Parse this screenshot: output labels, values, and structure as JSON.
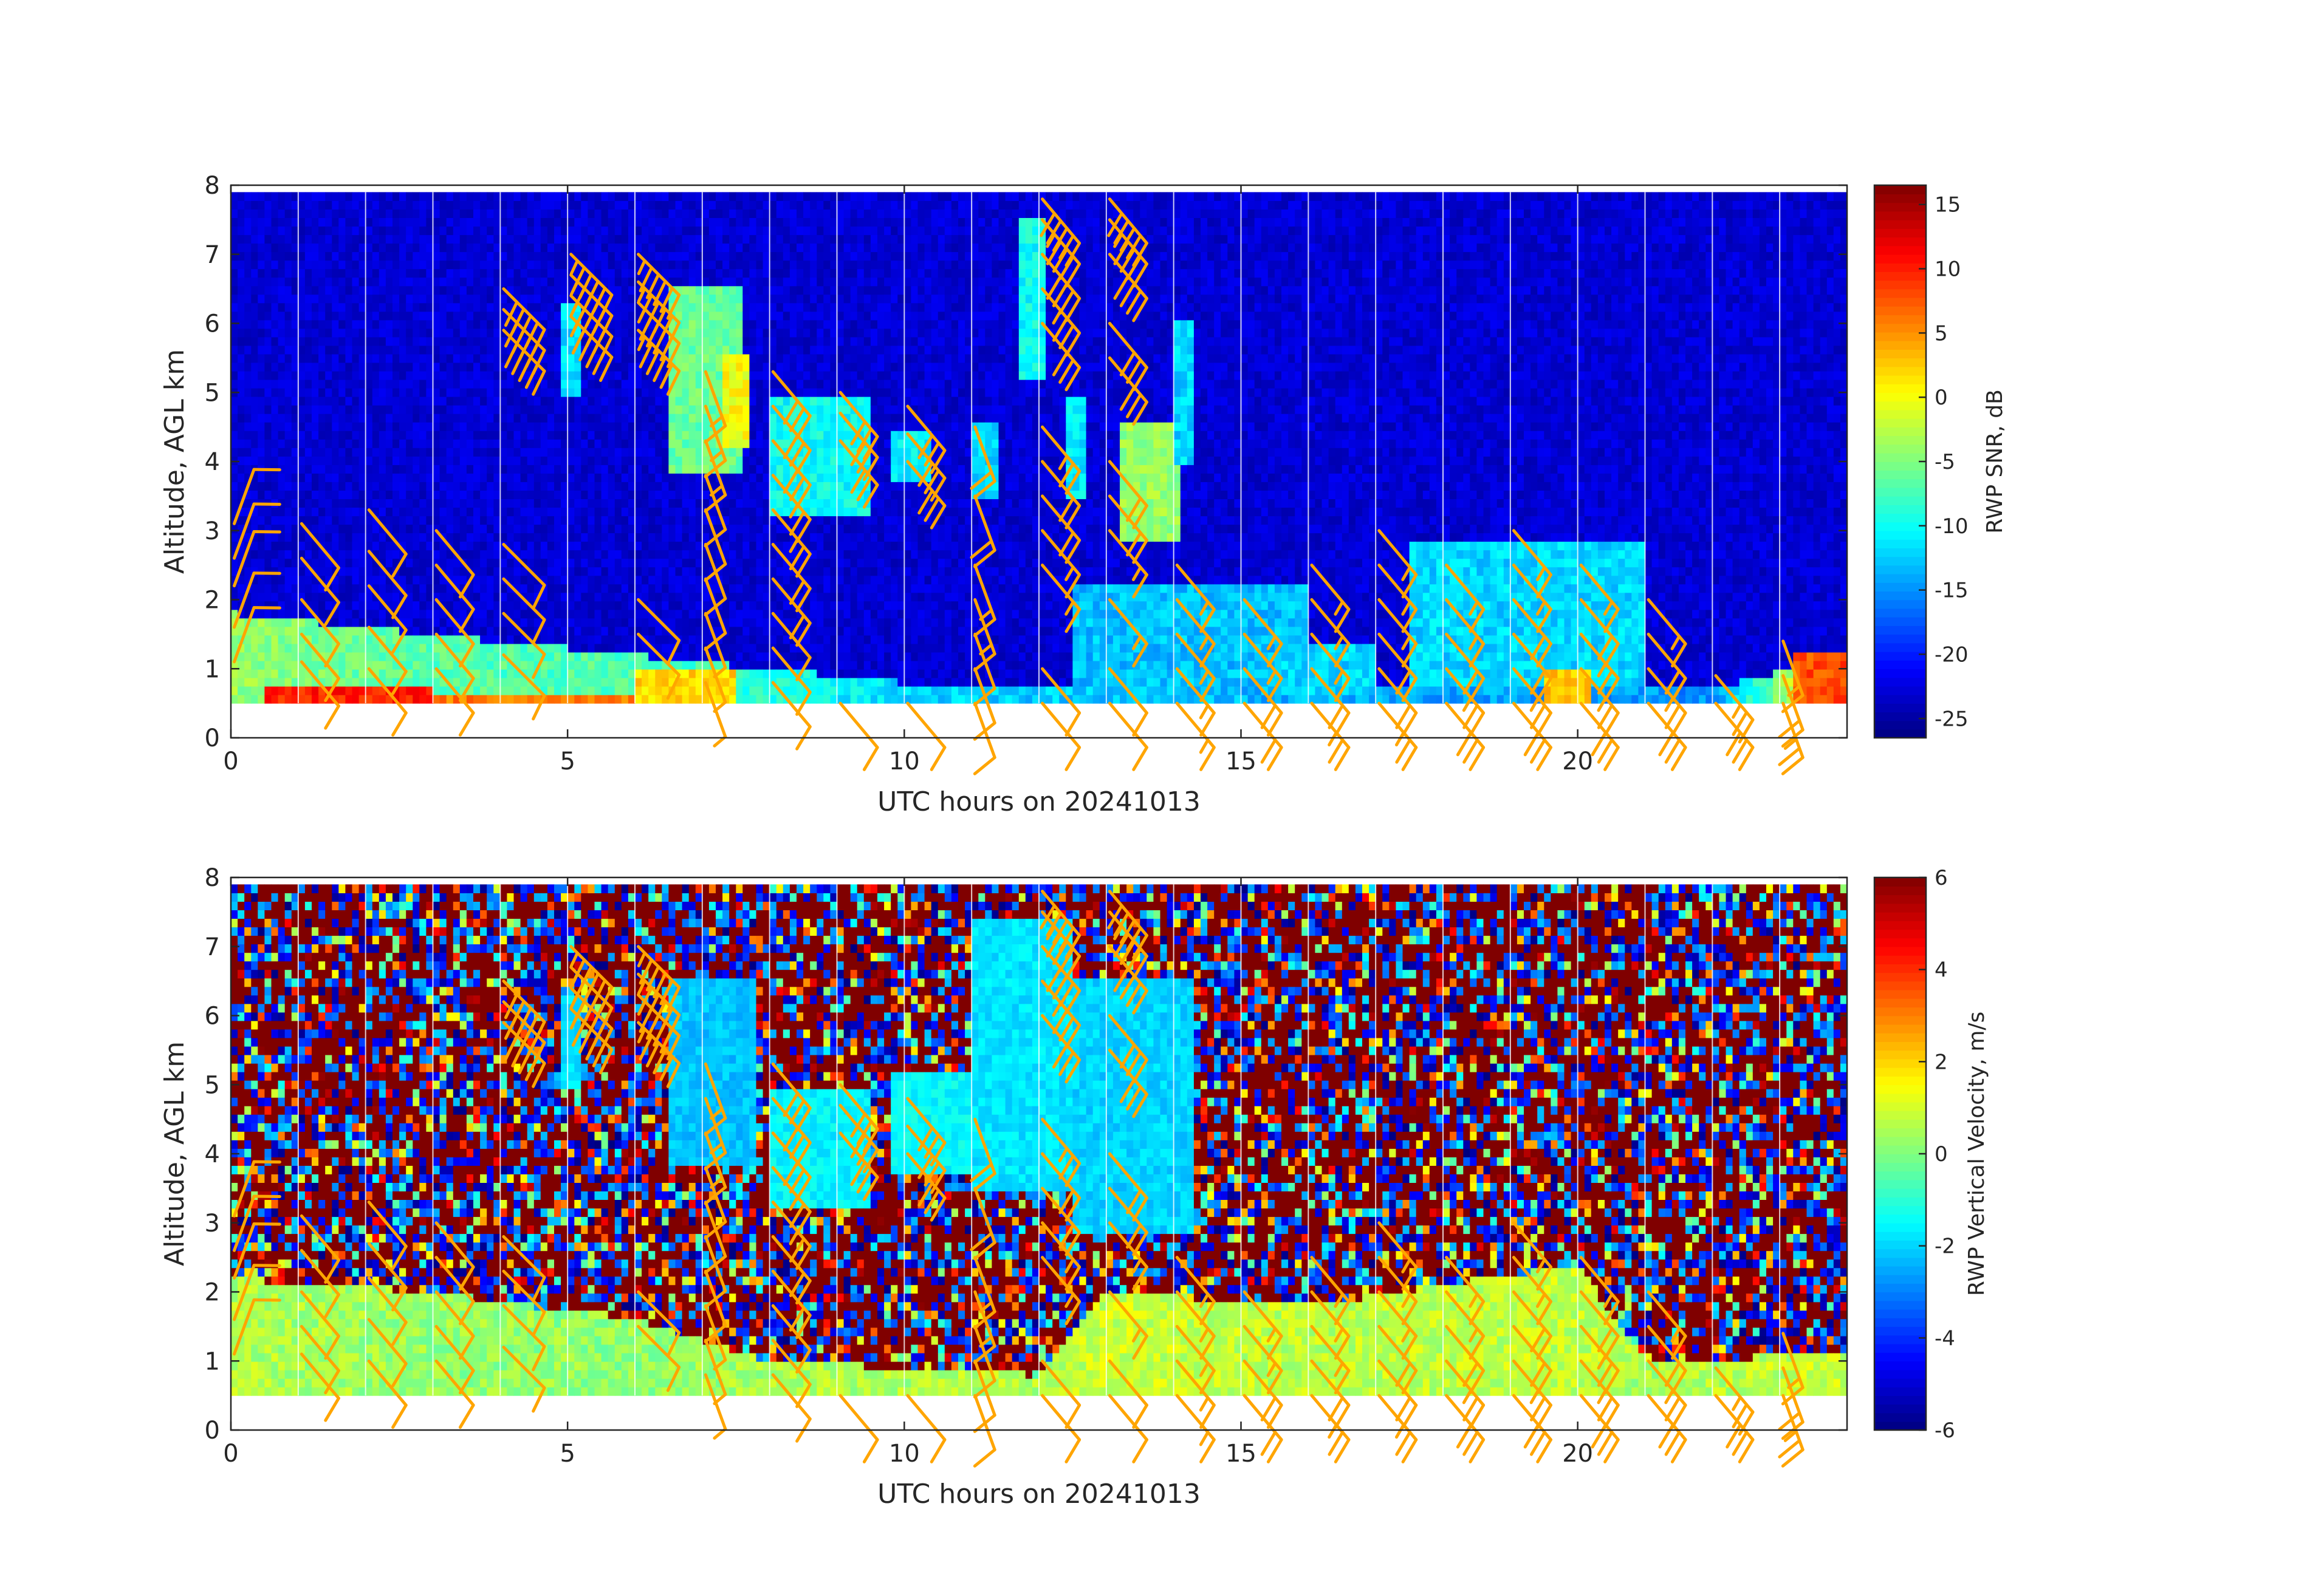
{
  "colors": {
    "barb": "#ffa500",
    "missing_band": "#ffffff",
    "axis": "#262626",
    "colormap": "jet"
  },
  "chart_data": [
    {
      "type": "heatmap",
      "name_printed": "",
      "xlabel": "UTC hours on 20241013",
      "ylabel": "Altitude, AGL km",
      "xlim": [
        0,
        24
      ],
      "ylim": [
        0,
        8
      ],
      "xticks": [
        0,
        5,
        10,
        15,
        20
      ],
      "yticks": [
        0,
        1,
        2,
        3,
        4,
        5,
        6,
        7,
        8
      ],
      "colorbar": {
        "label": "RWP SNR, dB",
        "clim": [
          -26.5,
          16.5
        ],
        "ticks": [
          -25,
          -20,
          -15,
          -10,
          -5,
          0,
          5,
          10,
          15
        ]
      },
      "data_range_alt": [
        0.5,
        7.9
      ],
      "background_value": -23,
      "boundary_layer": [
        {
          "t": 0,
          "top": 1.8,
          "value": -4
        },
        {
          "t": 2,
          "top": 1.6,
          "value": -6
        },
        {
          "t": 4,
          "top": 1.4,
          "value": -7
        },
        {
          "t": 6,
          "top": 1.2,
          "value": -7
        },
        {
          "t": 8,
          "top": 1.0,
          "value": -9
        },
        {
          "t": 10,
          "top": 0.8,
          "value": -12
        },
        {
          "t": 14,
          "top": 0.8,
          "value": -13
        },
        {
          "t": 18,
          "top": 0.8,
          "value": -14
        },
        {
          "t": 22,
          "top": 0.7,
          "value": -15
        },
        {
          "t": 24,
          "top": 1.2,
          "value": 6
        }
      ],
      "features": [
        {
          "t0": 0.5,
          "t1": 3.0,
          "z0": 0.5,
          "z1": 0.7,
          "value": 10
        },
        {
          "t0": 3.0,
          "t1": 6.5,
          "z0": 0.5,
          "z1": 0.65,
          "value": 6
        },
        {
          "t0": 6.0,
          "t1": 7.5,
          "z0": 0.5,
          "z1": 1.0,
          "value": 2
        },
        {
          "t0": 4.9,
          "t1": 5.2,
          "z0": 5.0,
          "z1": 6.3,
          "value": -12
        },
        {
          "t0": 6.5,
          "t1": 7.6,
          "z0": 3.8,
          "z1": 6.5,
          "value": -6
        },
        {
          "t0": 7.3,
          "t1": 7.7,
          "z0": 4.2,
          "z1": 5.6,
          "value": 0
        },
        {
          "t0": 8.0,
          "t1": 9.5,
          "z0": 3.2,
          "z1": 5.0,
          "value": -10
        },
        {
          "t0": 9.8,
          "t1": 10.4,
          "z0": 3.7,
          "z1": 4.5,
          "value": -11
        },
        {
          "t0": 11.0,
          "t1": 11.4,
          "z0": 3.4,
          "z1": 4.6,
          "value": -12
        },
        {
          "t0": 11.7,
          "t1": 12.1,
          "z0": 5.2,
          "z1": 7.5,
          "value": -10
        },
        {
          "t0": 12.4,
          "t1": 12.7,
          "z0": 3.5,
          "z1": 5.0,
          "value": -11
        },
        {
          "t0": 13.2,
          "t1": 14.1,
          "z0": 2.9,
          "z1": 4.6,
          "value": -4
        },
        {
          "t0": 14.0,
          "t1": 14.3,
          "z0": 4.0,
          "z1": 6.0,
          "value": -12
        },
        {
          "t0": 12.5,
          "t1": 16.0,
          "z0": 0.8,
          "z1": 2.2,
          "value": -13
        },
        {
          "t0": 15.5,
          "t1": 17.0,
          "z0": 0.6,
          "z1": 1.4,
          "value": -12
        },
        {
          "t0": 17.5,
          "t1": 21.0,
          "z0": 0.7,
          "z1": 2.8,
          "value": -12
        },
        {
          "t0": 19.5,
          "t1": 20.2,
          "z0": 0.5,
          "z1": 1.0,
          "value": 3
        },
        {
          "t0": 23.2,
          "t1": 24.0,
          "z0": 0.5,
          "z1": 1.2,
          "value": 8
        }
      ]
    },
    {
      "type": "heatmap",
      "xlabel": "UTC hours on 20241013",
      "ylabel": "Altitude, AGL km",
      "xlim": [
        0,
        24
      ],
      "ylim": [
        0,
        8
      ],
      "xticks": [
        0,
        5,
        10,
        15,
        20
      ],
      "yticks": [
        0,
        1,
        2,
        3,
        4,
        5,
        6,
        7,
        8
      ],
      "colorbar": {
        "label": "RWP Vertical Velocity, m/s",
        "clim": [
          -6,
          6
        ],
        "ticks": [
          -6,
          -4,
          -2,
          0,
          2,
          4,
          6
        ]
      },
      "data_range_alt": [
        0.5,
        7.9
      ],
      "background_value": "noise",
      "boundary_layer": [
        {
          "t": 0,
          "top": 2.2,
          "value": 0.6
        },
        {
          "t": 3,
          "top": 2.0,
          "value": 0.3
        },
        {
          "t": 6,
          "top": 1.6,
          "value": 0.2
        },
        {
          "t": 8,
          "top": 1.0,
          "value": 0.5
        },
        {
          "t": 12,
          "top": 0.8,
          "value": 0.6
        },
        {
          "t": 13,
          "top": 2.0,
          "value": 0.9
        },
        {
          "t": 16,
          "top": 1.8,
          "value": 0.7
        },
        {
          "t": 20,
          "top": 2.4,
          "value": 0.8
        },
        {
          "t": 21,
          "top": 1.0,
          "value": 0.5
        },
        {
          "t": 24,
          "top": 1.1,
          "value": 0.9
        }
      ],
      "features": [
        {
          "t0": 4.9,
          "t1": 5.2,
          "z0": 5.0,
          "z1": 6.3,
          "value": -1.8
        },
        {
          "t0": 6.5,
          "t1": 7.8,
          "z0": 3.8,
          "z1": 6.5,
          "value": -2.2
        },
        {
          "t0": 8.0,
          "t1": 9.5,
          "z0": 3.2,
          "z1": 5.0,
          "value": -1.6
        },
        {
          "t0": 9.8,
          "t1": 11.0,
          "z0": 3.7,
          "z1": 5.2,
          "value": -1.5
        },
        {
          "t0": 11.0,
          "t1": 12.5,
          "z0": 3.4,
          "z1": 7.4,
          "value": -1.8
        },
        {
          "t0": 12.5,
          "t1": 14.3,
          "z0": 2.8,
          "z1": 6.5,
          "value": -2.0
        }
      ]
    }
  ],
  "wind_barbs": {
    "times": [
      0,
      1,
      2,
      3,
      4,
      5,
      6,
      7,
      8,
      9,
      10,
      11,
      12,
      13,
      14,
      15,
      16,
      17,
      18,
      19,
      20,
      21,
      22,
      23
    ],
    "profiles": [
      {
        "t": 0,
        "heights": [
          1.1,
          1.6,
          2.2,
          2.6,
          3.1
        ],
        "dir": 200,
        "speed": [
          10,
          10,
          10,
          10,
          10
        ]
      },
      {
        "t": 1,
        "heights": [
          1.1,
          1.5,
          2.0,
          2.6,
          3.1
        ],
        "dir": 320,
        "speed": [
          10,
          10,
          10,
          10,
          10
        ]
      },
      {
        "t": 2,
        "heights": [
          1.0,
          1.6,
          2.2,
          2.7,
          3.3
        ],
        "dir": 320,
        "speed": [
          10,
          10,
          10,
          10,
          10
        ]
      },
      {
        "t": 3,
        "heights": [
          1.0,
          1.5,
          2.0,
          2.5,
          3.0
        ],
        "dir": 320,
        "speed": [
          10,
          10,
          10,
          10,
          10
        ]
      },
      {
        "t": 4,
        "heights": [
          1.2,
          1.8,
          2.3,
          2.8,
          5.9,
          6.2,
          6.5
        ],
        "dir": 315,
        "speed": [
          10,
          10,
          10,
          10,
          50,
          50,
          50
        ]
      },
      {
        "t": 5,
        "heights": [
          6.1,
          6.4,
          6.7,
          7.0
        ],
        "dir": 315,
        "speed": [
          55,
          55,
          55,
          55
        ]
      },
      {
        "t": 6,
        "heights": [
          1.5,
          2.0,
          5.9,
          6.3,
          6.6,
          7.0
        ],
        "dir": 315,
        "speed": [
          10,
          10,
          55,
          55,
          55,
          55
        ]
      },
      {
        "t": 7,
        "heights": [
          0.8,
          1.3,
          1.8,
          2.3,
          2.8,
          3.3,
          3.8,
          4.3,
          4.8,
          5.3
        ],
        "dir": 340,
        "speed": [
          5,
          5,
          5,
          10,
          10,
          10,
          10,
          15,
          15,
          15
        ]
      },
      {
        "t": 8,
        "heights": [
          0.8,
          1.3,
          1.8,
          2.3,
          2.8,
          3.3,
          3.8,
          4.3,
          4.8,
          5.3
        ],
        "dir": 320,
        "speed": [
          10,
          10,
          10,
          20,
          20,
          25,
          25,
          30,
          30,
          30
        ]
      },
      {
        "t": 9,
        "heights": [
          0.5,
          4.3,
          4.7,
          5.0
        ],
        "dir": 320,
        "speed": [
          10,
          30,
          30,
          30
        ]
      },
      {
        "t": 10,
        "heights": [
          0.5,
          4.0,
          4.4,
          4.8
        ],
        "dir": 320,
        "speed": [
          10,
          30,
          30,
          30
        ]
      },
      {
        "t": 11,
        "heights": [
          0.5,
          1.0,
          1.5,
          2.0,
          2.5,
          3.5,
          4.5
        ],
        "dir": 340,
        "speed": [
          10,
          10,
          10,
          15,
          15,
          20,
          20
        ]
      },
      {
        "t": 12,
        "heights": [
          0.5,
          1.0,
          2.5,
          3.0,
          3.5,
          4.0,
          4.5,
          6.0,
          6.5,
          7.0,
          7.5,
          7.8
        ],
        "dir": 320,
        "speed": [
          10,
          10,
          15,
          15,
          20,
          20,
          25,
          30,
          35,
          40,
          45,
          50
        ]
      },
      {
        "t": 13,
        "heights": [
          0.5,
          1.0,
          2.0,
          3.0,
          3.5,
          4.0,
          5.5,
          6.0,
          7.0,
          7.5,
          7.8
        ],
        "dir": 320,
        "speed": [
          10,
          10,
          15,
          15,
          20,
          20,
          30,
          30,
          40,
          45,
          50
        ]
      },
      {
        "t": 14,
        "heights": [
          0.5,
          1.0,
          1.5,
          2.0,
          2.5
        ],
        "dir": 320,
        "speed": [
          15,
          15,
          15,
          15,
          15
        ]
      },
      {
        "t": 15,
        "heights": [
          0.5,
          1.0,
          1.5,
          2.0
        ],
        "dir": 320,
        "speed": [
          20,
          20,
          15,
          15
        ]
      },
      {
        "t": 16,
        "heights": [
          0.5,
          1.0,
          1.5,
          2.0,
          2.5
        ],
        "dir": 320,
        "speed": [
          25,
          20,
          15,
          15,
          15
        ]
      },
      {
        "t": 17,
        "heights": [
          0.5,
          1.0,
          1.5,
          2.0,
          2.5,
          3.0
        ],
        "dir": 320,
        "speed": [
          25,
          20,
          20,
          15,
          15,
          15
        ]
      },
      {
        "t": 18,
        "heights": [
          0.5,
          1.0,
          1.5,
          2.0,
          2.5
        ],
        "dir": 320,
        "speed": [
          30,
          25,
          20,
          15,
          15
        ]
      },
      {
        "t": 19,
        "heights": [
          0.5,
          1.0,
          1.5,
          2.0,
          2.5,
          3.0
        ],
        "dir": 320,
        "speed": [
          30,
          25,
          20,
          20,
          15,
          15
        ]
      },
      {
        "t": 20,
        "heights": [
          0.5,
          1.0,
          1.5,
          2.0,
          2.5
        ],
        "dir": 320,
        "speed": [
          30,
          25,
          25,
          20,
          15
        ]
      },
      {
        "t": 21,
        "heights": [
          0.5,
          1.0,
          1.5,
          2.0
        ],
        "dir": 320,
        "speed": [
          30,
          25,
          20,
          15
        ]
      },
      {
        "t": 22,
        "heights": [
          0.5,
          0.9
        ],
        "dir": 320,
        "speed": [
          30,
          25
        ]
      },
      {
        "t": 23,
        "heights": [
          0.5,
          0.9,
          1.4
        ],
        "dir": 340,
        "speed": [
          25,
          20,
          15
        ]
      }
    ]
  }
}
